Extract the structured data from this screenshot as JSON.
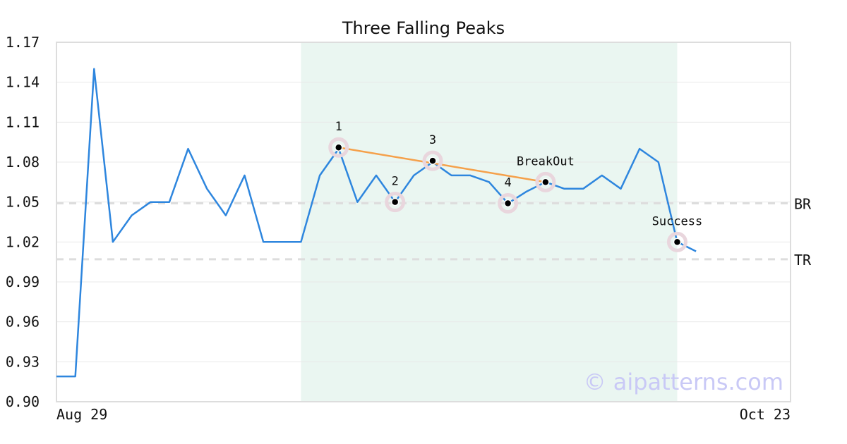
{
  "chart_data": {
    "type": "line",
    "title": "Three Falling Peaks",
    "xlabel": "",
    "ylabel": "",
    "ylim": [
      0.9,
      1.17
    ],
    "yticks": [
      "0.90",
      "0.93",
      "0.96",
      "0.99",
      "1.02",
      "1.05",
      "1.08",
      "1.11",
      "1.14",
      "1.17"
    ],
    "xtick_labels": [
      "Aug 29",
      "Oct 23"
    ],
    "grid": "horizontal",
    "colors": {
      "price": "#2e86de",
      "trend": "#f5a04a",
      "highlight": "#eaf6f1",
      "marker_ring": "#e9d6dd",
      "level_line": "#dddddd",
      "axis": "#dddddd"
    },
    "series": [
      {
        "values": [
          0.919,
          0.919,
          1.15,
          1.02,
          1.04,
          1.05,
          1.05,
          1.09,
          1.06,
          1.04,
          1.07,
          1.02,
          1.02,
          1.02,
          1.07,
          1.09,
          1.05,
          1.07,
          1.05,
          1.07,
          1.08,
          1.07,
          1.07,
          1.065,
          1.049,
          1.058,
          1.065,
          1.06,
          1.06,
          1.07,
          1.06,
          1.09,
          1.08,
          1.02,
          1.013
        ]
      }
    ],
    "highlight_range": {
      "from_index": 13,
      "to_index": 33
    },
    "trendline": {
      "from_index": 15,
      "from_value": 1.091,
      "to_index": 26,
      "to_value": 1.065
    },
    "annotations": [
      {
        "label": "1",
        "index": 15,
        "value": 1.091,
        "position": "above"
      },
      {
        "label": "2",
        "index": 18,
        "value": 1.05,
        "position": "above"
      },
      {
        "label": "3",
        "index": 20,
        "value": 1.081,
        "position": "above"
      },
      {
        "label": "4",
        "index": 24,
        "value": 1.049,
        "position": "above"
      },
      {
        "label": "BreakOut",
        "index": 26,
        "value": 1.065,
        "position": "above"
      },
      {
        "label": "Success",
        "index": 33,
        "value": 1.02,
        "position": "above"
      }
    ],
    "levels": [
      {
        "label": "BR",
        "value": 1.049
      },
      {
        "label": "TR",
        "value": 1.007
      }
    ],
    "watermark": "© aipatterns.com"
  }
}
